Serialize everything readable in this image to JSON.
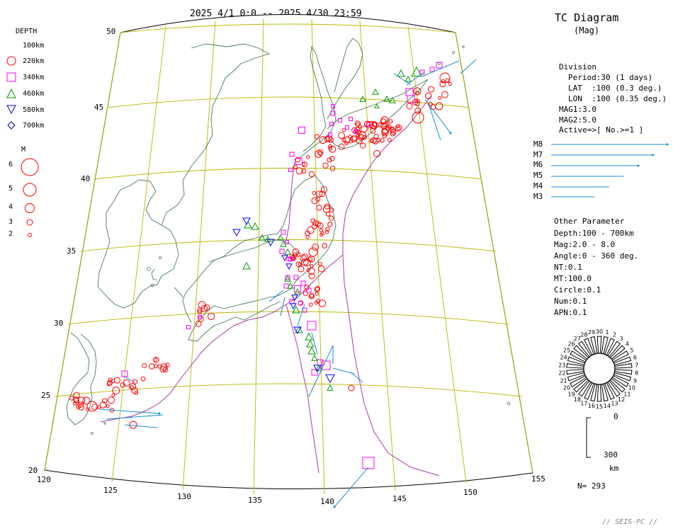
{
  "header": {
    "period": "2025 4/1 0:0 -- 2025 4/30 23:59"
  },
  "tc": {
    "title": "TC Diagram",
    "subtitle": "(Mag)"
  },
  "legend": {
    "depth_title": "DEPTH",
    "depth_items": [
      {
        "label": "100km",
        "symbol": "none"
      },
      {
        "label": "220km",
        "symbol": "circle",
        "color": "#ff0000"
      },
      {
        "label": "340km",
        "symbol": "square",
        "color": "#ff00ff"
      },
      {
        "label": "460km",
        "symbol": "triangle",
        "color": "#009900"
      },
      {
        "label": "580km",
        "symbol": "inverted-triangle",
        "color": "#0000ff"
      },
      {
        "label": "700km",
        "symbol": "diamond",
        "color": "#0000aa"
      }
    ],
    "mag_title": "M",
    "mag_items": [
      "6",
      "5",
      "4",
      "3",
      "2"
    ]
  },
  "division": {
    "title": "Division",
    "lines": [
      "Period:30 (1 days)",
      "LAT  :100 (0.3 deg.)",
      "LON  :100 (0.35 deg.)"
    ],
    "mag1": "MAG1:3.0",
    "mag2": "MAG2:5.0",
    "active": "Active=>[ No.>=1 ]"
  },
  "mscale": {
    "items": [
      {
        "label": "M8",
        "length": 8
      },
      {
        "label": "M7",
        "length": 7
      },
      {
        "label": "M6",
        "length": 6
      },
      {
        "label": "M5",
        "length": 5
      },
      {
        "label": "M4",
        "length": 4
      },
      {
        "label": "M3",
        "length": 3
      }
    ],
    "color": "#1a8ad4"
  },
  "other": {
    "title": "Other Parameter",
    "lines": [
      "Depth:100 - 700km",
      "Mag:2.0 - 8.0",
      "Angle:0 - 360 deg.",
      "NT:0.1",
      "MT:100.0",
      "Circle:0.1",
      "Num:0.1",
      "APN:0.1"
    ]
  },
  "rose": {
    "labels": [
      "30",
      "1",
      "2",
      "3",
      "4",
      "5",
      "6",
      "7",
      "8",
      "9",
      "10",
      "11",
      "12",
      "13",
      "14",
      "15",
      "16",
      "17",
      "18",
      "19",
      "20",
      "21",
      "22",
      "23",
      "24",
      "25",
      "26",
      "27",
      "28",
      "29"
    ]
  },
  "depth_scale": {
    "top": "0",
    "bottom": "300",
    "unit": "km"
  },
  "count": "N= 293",
  "footer": "// SEIS-PC //",
  "map": {
    "lat_labels": [
      "50",
      "45",
      "40",
      "35",
      "30",
      "25",
      "20"
    ],
    "lon_labels": [
      "120",
      "125",
      "130",
      "135",
      "140",
      "145",
      "150",
      "155"
    ],
    "grid_color": "#b8b800",
    "coast_color": "#4a7a5a",
    "trench_color": "#a040a0"
  }
}
